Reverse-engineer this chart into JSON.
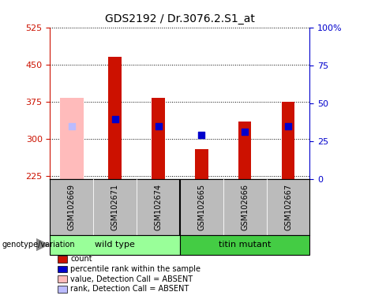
{
  "title": "GDS2192 / Dr.3076.2.S1_at",
  "samples": [
    "GSM102669",
    "GSM102671",
    "GSM102674",
    "GSM102665",
    "GSM102666",
    "GSM102667"
  ],
  "ylim_left": [
    220,
    525
  ],
  "yticks_left": [
    225,
    300,
    375,
    450,
    525
  ],
  "ylim_right": [
    0,
    100
  ],
  "yticks_right": [
    0,
    25,
    50,
    75,
    100
  ],
  "bar_bottom": 220,
  "count_values": [
    null,
    465,
    383,
    280,
    335,
    375
  ],
  "count_color": "#cc1100",
  "rank_values": [
    null,
    340,
    325,
    308,
    315,
    325
  ],
  "rank_color": "#0000cc",
  "absent_value_values": [
    383,
    null,
    null,
    null,
    null,
    null
  ],
  "absent_value_color": "#ffbbbb",
  "absent_rank_values": [
    325,
    null,
    null,
    null,
    null,
    null
  ],
  "absent_rank_color": "#bbbbff",
  "left_tick_color": "#cc1100",
  "right_tick_color": "#0000cc",
  "plot_bg": "#ffffff",
  "sample_area_bg": "#bbbbbb",
  "genotype_wt_color": "#99ff99",
  "genotype_mut_color": "#44cc44",
  "legend_items": [
    {
      "label": "count",
      "color": "#cc1100"
    },
    {
      "label": "percentile rank within the sample",
      "color": "#0000cc"
    },
    {
      "label": "value, Detection Call = ABSENT",
      "color": "#ffbbbb"
    },
    {
      "label": "rank, Detection Call = ABSENT",
      "color": "#bbbbff"
    }
  ]
}
